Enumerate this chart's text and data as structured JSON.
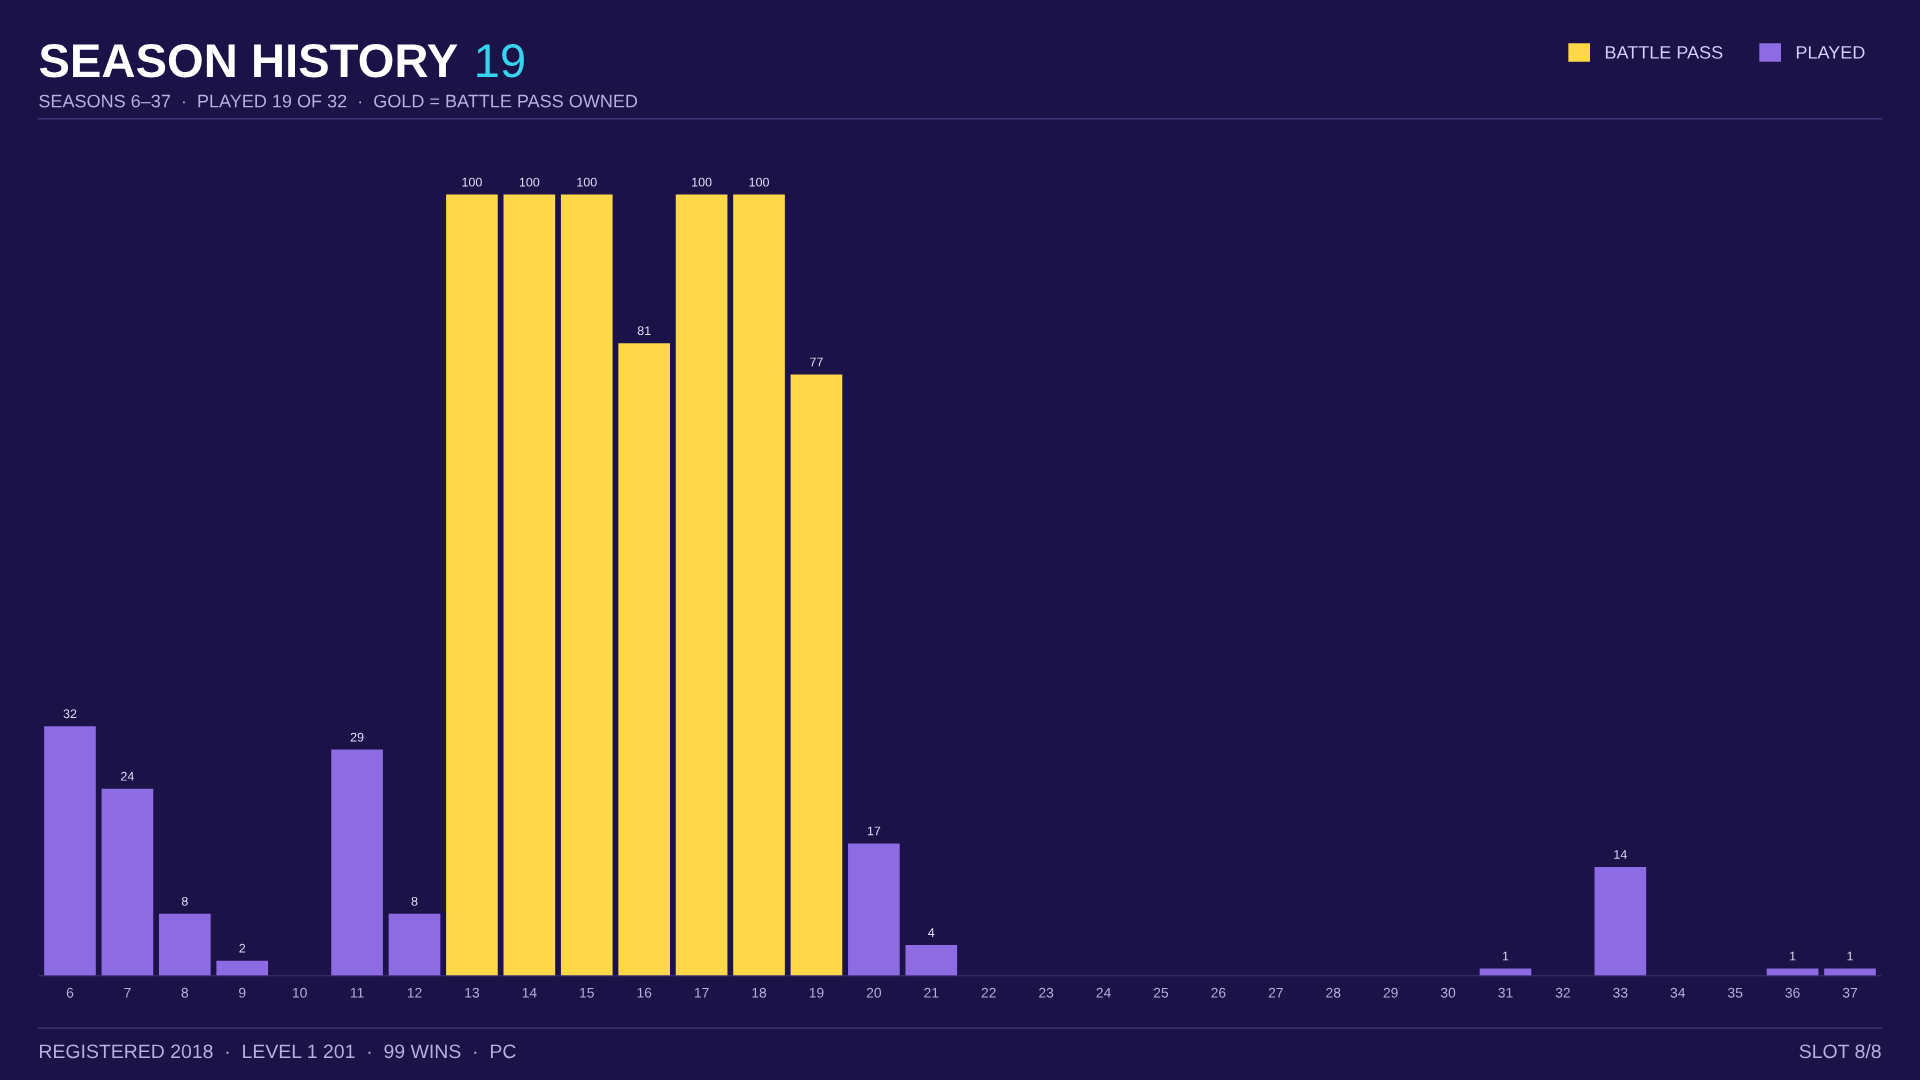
{
  "chart_data": {
    "type": "bar",
    "title": "SEASON HISTORY",
    "subtitle": "SEASONS 6–37  ·  PLAYED 19 OF 32  ·  GOLD = BATTLE PASS OWNED",
    "annotations": [
      "19",
      "REGISTERED 2018  ·  LEVEL 1 201  ·  99 WINS  ·  PC",
      "SLOT 8/8"
    ],
    "categories": [
      "6",
      "7",
      "8",
      "9",
      "10",
      "11",
      "12",
      "13",
      "14",
      "15",
      "16",
      "17",
      "18",
      "19",
      "20",
      "21",
      "22",
      "23",
      "24",
      "25",
      "26",
      "27",
      "28",
      "29",
      "30",
      "31",
      "32",
      "33",
      "34",
      "35",
      "36",
      "37"
    ],
    "series": [
      {
        "name": "BATTLE PASS",
        "color": "#ffd84a",
        "values": [
          null,
          null,
          null,
          null,
          null,
          null,
          null,
          100,
          100,
          100,
          81,
          100,
          100,
          77,
          null,
          null,
          null,
          null,
          null,
          null,
          null,
          null,
          null,
          null,
          null,
          null,
          null,
          null,
          null,
          null,
          null,
          null
        ]
      },
      {
        "name": "PLAYED",
        "color": "#8d6be3",
        "values": [
          32,
          24,
          8,
          2,
          null,
          29,
          8,
          null,
          null,
          null,
          null,
          null,
          null,
          null,
          17,
          4,
          null,
          null,
          null,
          null,
          null,
          null,
          null,
          null,
          null,
          1,
          null,
          14,
          null,
          null,
          1,
          1
        ]
      }
    ],
    "data_labels": true,
    "legend": "top right",
    "grid": false,
    "tick_labels": "x"
  }
}
